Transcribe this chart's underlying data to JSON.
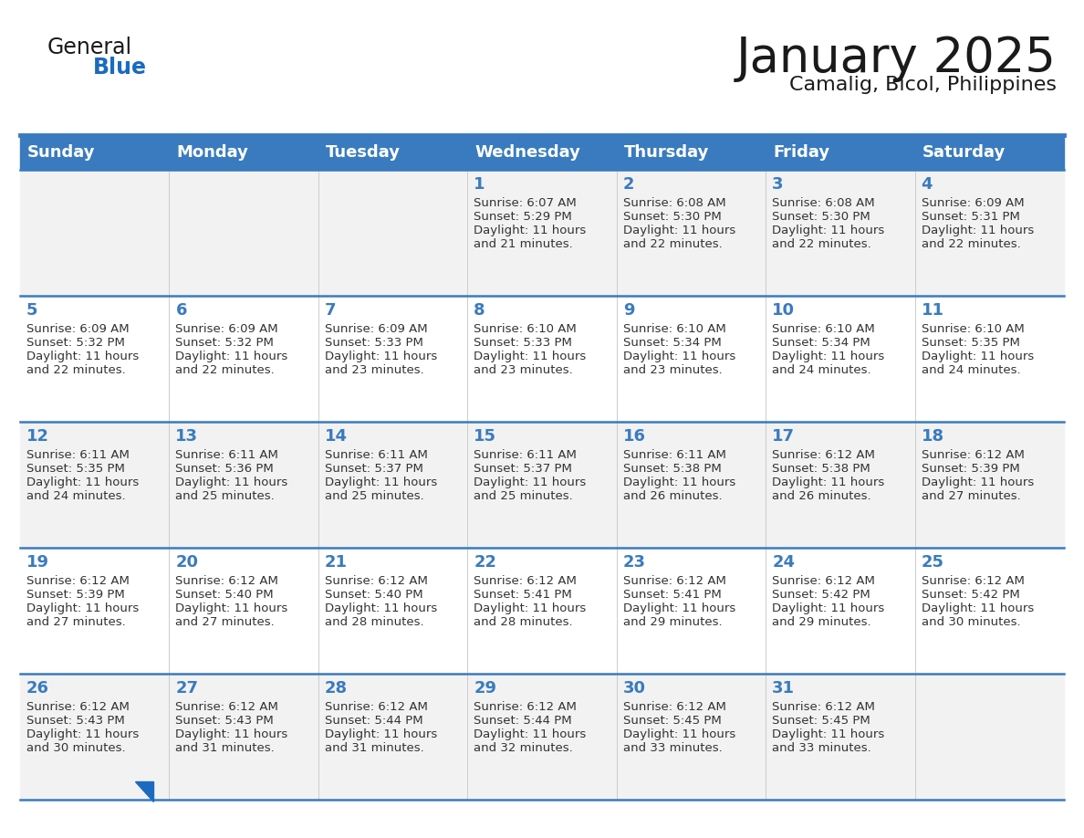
{
  "title": "January 2025",
  "subtitle": "Camalig, Bicol, Philippines",
  "days_of_week": [
    "Sunday",
    "Monday",
    "Tuesday",
    "Wednesday",
    "Thursday",
    "Friday",
    "Saturday"
  ],
  "header_bg": "#3a7bbf",
  "header_text": "#ffffff",
  "row_bg_odd": "#f2f2f2",
  "row_bg_even": "#ffffff",
  "separator_color": "#3a7bbf",
  "day_num_color": "#3a7bbf",
  "text_color": "#333333",
  "calendar": [
    [
      {
        "day": "",
        "sunrise": "",
        "sunset": "",
        "daylight": ""
      },
      {
        "day": "",
        "sunrise": "",
        "sunset": "",
        "daylight": ""
      },
      {
        "day": "",
        "sunrise": "",
        "sunset": "",
        "daylight": ""
      },
      {
        "day": "1",
        "sunrise": "6:07 AM",
        "sunset": "5:29 PM",
        "daylight": "11 hours\nand 21 minutes."
      },
      {
        "day": "2",
        "sunrise": "6:08 AM",
        "sunset": "5:30 PM",
        "daylight": "11 hours\nand 22 minutes."
      },
      {
        "day": "3",
        "sunrise": "6:08 AM",
        "sunset": "5:30 PM",
        "daylight": "11 hours\nand 22 minutes."
      },
      {
        "day": "4",
        "sunrise": "6:09 AM",
        "sunset": "5:31 PM",
        "daylight": "11 hours\nand 22 minutes."
      }
    ],
    [
      {
        "day": "5",
        "sunrise": "6:09 AM",
        "sunset": "5:32 PM",
        "daylight": "11 hours\nand 22 minutes."
      },
      {
        "day": "6",
        "sunrise": "6:09 AM",
        "sunset": "5:32 PM",
        "daylight": "11 hours\nand 22 minutes."
      },
      {
        "day": "7",
        "sunrise": "6:09 AM",
        "sunset": "5:33 PM",
        "daylight": "11 hours\nand 23 minutes."
      },
      {
        "day": "8",
        "sunrise": "6:10 AM",
        "sunset": "5:33 PM",
        "daylight": "11 hours\nand 23 minutes."
      },
      {
        "day": "9",
        "sunrise": "6:10 AM",
        "sunset": "5:34 PM",
        "daylight": "11 hours\nand 23 minutes."
      },
      {
        "day": "10",
        "sunrise": "6:10 AM",
        "sunset": "5:34 PM",
        "daylight": "11 hours\nand 24 minutes."
      },
      {
        "day": "11",
        "sunrise": "6:10 AM",
        "sunset": "5:35 PM",
        "daylight": "11 hours\nand 24 minutes."
      }
    ],
    [
      {
        "day": "12",
        "sunrise": "6:11 AM",
        "sunset": "5:35 PM",
        "daylight": "11 hours\nand 24 minutes."
      },
      {
        "day": "13",
        "sunrise": "6:11 AM",
        "sunset": "5:36 PM",
        "daylight": "11 hours\nand 25 minutes."
      },
      {
        "day": "14",
        "sunrise": "6:11 AM",
        "sunset": "5:37 PM",
        "daylight": "11 hours\nand 25 minutes."
      },
      {
        "day": "15",
        "sunrise": "6:11 AM",
        "sunset": "5:37 PM",
        "daylight": "11 hours\nand 25 minutes."
      },
      {
        "day": "16",
        "sunrise": "6:11 AM",
        "sunset": "5:38 PM",
        "daylight": "11 hours\nand 26 minutes."
      },
      {
        "day": "17",
        "sunrise": "6:12 AM",
        "sunset": "5:38 PM",
        "daylight": "11 hours\nand 26 minutes."
      },
      {
        "day": "18",
        "sunrise": "6:12 AM",
        "sunset": "5:39 PM",
        "daylight": "11 hours\nand 27 minutes."
      }
    ],
    [
      {
        "day": "19",
        "sunrise": "6:12 AM",
        "sunset": "5:39 PM",
        "daylight": "11 hours\nand 27 minutes."
      },
      {
        "day": "20",
        "sunrise": "6:12 AM",
        "sunset": "5:40 PM",
        "daylight": "11 hours\nand 27 minutes."
      },
      {
        "day": "21",
        "sunrise": "6:12 AM",
        "sunset": "5:40 PM",
        "daylight": "11 hours\nand 28 minutes."
      },
      {
        "day": "22",
        "sunrise": "6:12 AM",
        "sunset": "5:41 PM",
        "daylight": "11 hours\nand 28 minutes."
      },
      {
        "day": "23",
        "sunrise": "6:12 AM",
        "sunset": "5:41 PM",
        "daylight": "11 hours\nand 29 minutes."
      },
      {
        "day": "24",
        "sunrise": "6:12 AM",
        "sunset": "5:42 PM",
        "daylight": "11 hours\nand 29 minutes."
      },
      {
        "day": "25",
        "sunrise": "6:12 AM",
        "sunset": "5:42 PM",
        "daylight": "11 hours\nand 30 minutes."
      }
    ],
    [
      {
        "day": "26",
        "sunrise": "6:12 AM",
        "sunset": "5:43 PM",
        "daylight": "11 hours\nand 30 minutes."
      },
      {
        "day": "27",
        "sunrise": "6:12 AM",
        "sunset": "5:43 PM",
        "daylight": "11 hours\nand 31 minutes."
      },
      {
        "day": "28",
        "sunrise": "6:12 AM",
        "sunset": "5:44 PM",
        "daylight": "11 hours\nand 31 minutes."
      },
      {
        "day": "29",
        "sunrise": "6:12 AM",
        "sunset": "5:44 PM",
        "daylight": "11 hours\nand 32 minutes."
      },
      {
        "day": "30",
        "sunrise": "6:12 AM",
        "sunset": "5:45 PM",
        "daylight": "11 hours\nand 33 minutes."
      },
      {
        "day": "31",
        "sunrise": "6:12 AM",
        "sunset": "5:45 PM",
        "daylight": "11 hours\nand 33 minutes."
      },
      {
        "day": "",
        "sunrise": "",
        "sunset": "",
        "daylight": ""
      }
    ]
  ],
  "logo_color_general": "#1a1a1a",
  "logo_color_blue": "#1a6bbf",
  "logo_triangle_color": "#1a6bbf",
  "title_fontsize": 38,
  "subtitle_fontsize": 16,
  "header_fontsize": 13,
  "day_num_fontsize": 13,
  "cell_text_fontsize": 9.5
}
